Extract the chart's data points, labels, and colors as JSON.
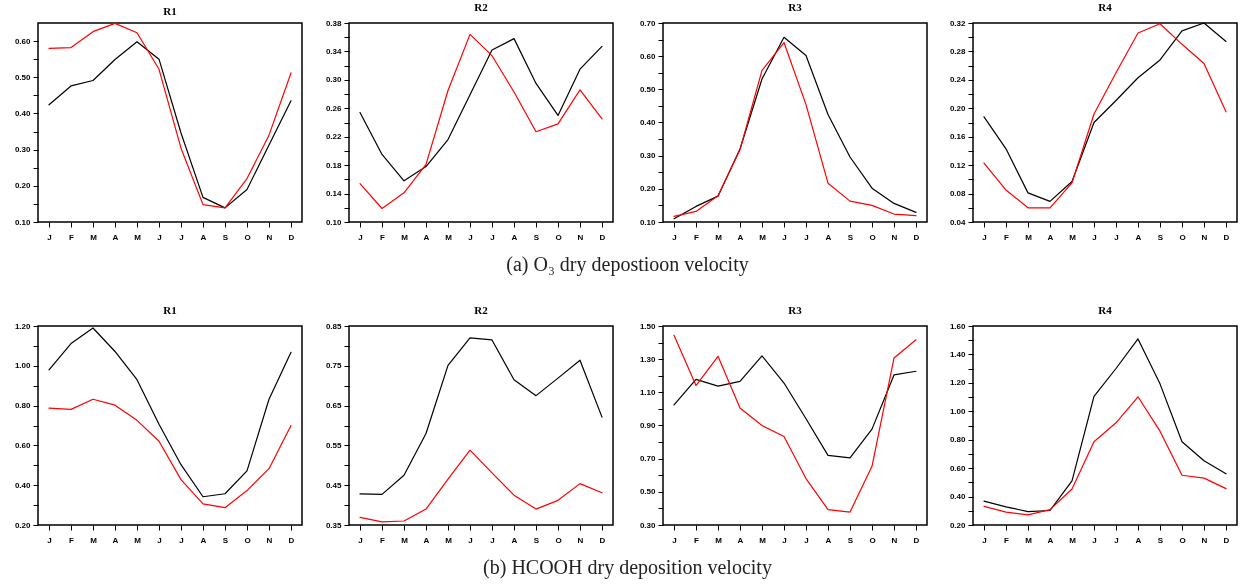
{
  "chart_data": [
    {
      "type": "line",
      "title": "R1",
      "categories": [
        "J",
        "F",
        "M",
        "A",
        "M",
        "J",
        "J",
        "A",
        "S",
        "O",
        "N",
        "D"
      ],
      "ylim": [
        0.1,
        0.65
      ],
      "yticks": [
        {
          "value": 0.1,
          "label": "0.10"
        },
        {
          "value": 0.15,
          "label": null
        },
        {
          "value": 0.2,
          "label": "0.20"
        },
        {
          "value": 0.25,
          "label": null
        },
        {
          "value": 0.3,
          "label": "0.30"
        },
        {
          "value": 0.35,
          "label": null
        },
        {
          "value": 0.4,
          "label": "0.40"
        },
        {
          "value": 0.45,
          "label": null
        },
        {
          "value": 0.5,
          "label": "0.50"
        },
        {
          "value": 0.55,
          "label": null
        },
        {
          "value": 0.6,
          "label": "0.60"
        }
      ],
      "grid": false,
      "annotations": [
        "(a) O₃ dry depostioon velocity"
      ],
      "series": [
        {
          "color": "#000000",
          "values": [
            0.424,
            0.476,
            0.491,
            0.549,
            0.598,
            0.55,
            0.346,
            0.168,
            0.139,
            0.19,
            0.313,
            0.435
          ]
        },
        {
          "color": "#ff0000",
          "values": [
            0.58,
            0.582,
            0.626,
            0.649,
            0.623,
            0.522,
            0.304,
            0.148,
            0.139,
            0.22,
            0.34,
            0.512
          ]
        }
      ]
    },
    {
      "type": "line",
      "title": "R2",
      "categories": [
        "J",
        "F",
        "M",
        "A",
        "M",
        "J",
        "J",
        "A",
        "S",
        "O",
        "N",
        "D"
      ],
      "ylim": [
        0.1,
        0.38
      ],
      "yticks": [
        {
          "value": 0.1,
          "label": "0.10"
        },
        {
          "value": 0.12,
          "label": null
        },
        {
          "value": 0.14,
          "label": "0.14"
        },
        {
          "value": 0.16,
          "label": null
        },
        {
          "value": 0.18,
          "label": "0.18"
        },
        {
          "value": 0.2,
          "label": null
        },
        {
          "value": 0.22,
          "label": "0.22"
        },
        {
          "value": 0.24,
          "label": null
        },
        {
          "value": 0.26,
          "label": "0.26"
        },
        {
          "value": 0.28,
          "label": null
        },
        {
          "value": 0.3,
          "label": "0.30"
        },
        {
          "value": 0.32,
          "label": null
        },
        {
          "value": 0.34,
          "label": "0.34"
        },
        {
          "value": 0.36,
          "label": null
        },
        {
          "value": 0.38,
          "label": "0.38"
        }
      ],
      "grid": false,
      "series": [
        {
          "color": "#000000",
          "values": [
            0.254,
            0.195,
            0.158,
            0.178,
            0.216,
            0.279,
            0.342,
            0.358,
            0.295,
            0.25,
            0.315,
            0.347
          ]
        },
        {
          "color": "#ff0000",
          "values": [
            0.154,
            0.119,
            0.141,
            0.181,
            0.285,
            0.364,
            0.334,
            0.283,
            0.227,
            0.238,
            0.286,
            0.245
          ]
        }
      ]
    },
    {
      "type": "line",
      "title": "R3",
      "categories": [
        "J",
        "F",
        "M",
        "A",
        "M",
        "J",
        "J",
        "A",
        "S",
        "O",
        "N",
        "D"
      ],
      "ylim": [
        0.1,
        0.7
      ],
      "yticks": [
        {
          "value": 0.1,
          "label": "0.10"
        },
        {
          "value": 0.15,
          "label": null
        },
        {
          "value": 0.2,
          "label": "0.20"
        },
        {
          "value": 0.25,
          "label": null
        },
        {
          "value": 0.3,
          "label": "0.30"
        },
        {
          "value": 0.35,
          "label": null
        },
        {
          "value": 0.4,
          "label": "0.40"
        },
        {
          "value": 0.45,
          "label": null
        },
        {
          "value": 0.5,
          "label": "0.50"
        },
        {
          "value": 0.55,
          "label": null
        },
        {
          "value": 0.6,
          "label": "0.60"
        },
        {
          "value": 0.65,
          "label": null
        },
        {
          "value": 0.7,
          "label": "0.70"
        }
      ],
      "grid": false,
      "series": [
        {
          "color": "#000000",
          "values": [
            0.11,
            0.147,
            0.178,
            0.32,
            0.531,
            0.657,
            0.602,
            0.424,
            0.296,
            0.202,
            0.156,
            0.129
          ]
        },
        {
          "color": "#ff0000",
          "values": [
            0.117,
            0.132,
            0.179,
            0.318,
            0.557,
            0.641,
            0.454,
            0.217,
            0.163,
            0.15,
            0.124,
            0.119
          ]
        }
      ]
    },
    {
      "type": "line",
      "title": "R4",
      "categories": [
        "J",
        "F",
        "M",
        "A",
        "M",
        "J",
        "J",
        "A",
        "S",
        "O",
        "N",
        "D"
      ],
      "ylim": [
        0.04,
        0.32
      ],
      "yticks": [
        {
          "value": 0.04,
          "label": "0.04"
        },
        {
          "value": 0.06,
          "label": null
        },
        {
          "value": 0.08,
          "label": "0.08"
        },
        {
          "value": 0.1,
          "label": null
        },
        {
          "value": 0.12,
          "label": "0.12"
        },
        {
          "value": 0.14,
          "label": null
        },
        {
          "value": 0.16,
          "label": "0.16"
        },
        {
          "value": 0.18,
          "label": null
        },
        {
          "value": 0.2,
          "label": "0.20"
        },
        {
          "value": 0.22,
          "label": null
        },
        {
          "value": 0.24,
          "label": "0.24"
        },
        {
          "value": 0.26,
          "label": null
        },
        {
          "value": 0.28,
          "label": "0.28"
        },
        {
          "value": 0.3,
          "label": null
        },
        {
          "value": 0.32,
          "label": "0.32"
        }
      ],
      "grid": false,
      "series": [
        {
          "color": "#000000",
          "values": [
            0.188,
            0.143,
            0.081,
            0.069,
            0.097,
            0.18,
            0.211,
            0.243,
            0.268,
            0.309,
            0.32,
            0.294
          ]
        },
        {
          "color": "#ff0000",
          "values": [
            0.123,
            0.085,
            0.06,
            0.06,
            0.095,
            0.192,
            0.25,
            0.306,
            0.319,
            0.29,
            0.263,
            0.195
          ]
        }
      ]
    },
    {
      "type": "line",
      "title": "R1",
      "categories": [
        "J",
        "F",
        "M",
        "A",
        "M",
        "J",
        "J",
        "A",
        "S",
        "O",
        "N",
        "D"
      ],
      "ylim": [
        0.2,
        1.2
      ],
      "yticks": [
        {
          "value": 0.2,
          "label": "0.20"
        },
        {
          "value": 0.3,
          "label": null
        },
        {
          "value": 0.4,
          "label": "0.40"
        },
        {
          "value": 0.5,
          "label": null
        },
        {
          "value": 0.6,
          "label": "0.60"
        },
        {
          "value": 0.7,
          "label": null
        },
        {
          "value": 0.8,
          "label": "0.80"
        },
        {
          "value": 0.9,
          "label": null
        },
        {
          "value": 1.0,
          "label": "1.00"
        },
        {
          "value": 1.1,
          "label": null
        },
        {
          "value": 1.2,
          "label": "1.20"
        }
      ],
      "grid": false,
      "annotations": [
        "(b) HCOOH dry deposition velocity"
      ],
      "series": [
        {
          "color": "#000000",
          "values": [
            0.98,
            1.112,
            1.19,
            1.072,
            0.93,
            0.706,
            0.503,
            0.342,
            0.357,
            0.472,
            0.832,
            1.068
          ]
        },
        {
          "color": "#ff0000",
          "values": [
            0.787,
            0.781,
            0.832,
            0.802,
            0.726,
            0.621,
            0.428,
            0.306,
            0.287,
            0.373,
            0.483,
            0.7
          ]
        }
      ]
    },
    {
      "type": "line",
      "title": "R2",
      "categories": [
        "J",
        "F",
        "M",
        "A",
        "M",
        "J",
        "J",
        "A",
        "S",
        "O",
        "N",
        "D"
      ],
      "ylim": [
        0.35,
        0.85
      ],
      "yticks": [
        {
          "value": 0.35,
          "label": "0.35"
        },
        {
          "value": 0.4,
          "label": null
        },
        {
          "value": 0.45,
          "label": "0.45"
        },
        {
          "value": 0.5,
          "label": null
        },
        {
          "value": 0.55,
          "label": "0.55"
        },
        {
          "value": 0.6,
          "label": null
        },
        {
          "value": 0.65,
          "label": "0.65"
        },
        {
          "value": 0.7,
          "label": null
        },
        {
          "value": 0.75,
          "label": "0.75"
        },
        {
          "value": 0.8,
          "label": null
        },
        {
          "value": 0.85,
          "label": "0.85"
        }
      ],
      "grid": false,
      "series": [
        {
          "color": "#000000",
          "values": [
            0.428,
            0.427,
            0.475,
            0.58,
            0.751,
            0.82,
            0.815,
            0.715,
            0.675,
            0.719,
            0.764,
            0.621
          ]
        },
        {
          "color": "#ff0000",
          "values": [
            0.369,
            0.358,
            0.36,
            0.39,
            0.465,
            0.538,
            0.481,
            0.425,
            0.39,
            0.412,
            0.454,
            0.431
          ]
        }
      ]
    },
    {
      "type": "line",
      "title": "R3",
      "categories": [
        "J",
        "F",
        "M",
        "A",
        "M",
        "J",
        "J",
        "A",
        "S",
        "O",
        "N",
        "D"
      ],
      "ylim": [
        0.3,
        1.5
      ],
      "yticks": [
        {
          "value": 0.3,
          "label": "0.30"
        },
        {
          "value": 0.4,
          "label": null
        },
        {
          "value": 0.5,
          "label": "0.50"
        },
        {
          "value": 0.6,
          "label": null
        },
        {
          "value": 0.7,
          "label": "0.70"
        },
        {
          "value": 0.8,
          "label": null
        },
        {
          "value": 0.9,
          "label": "0.90"
        },
        {
          "value": 1.0,
          "label": null
        },
        {
          "value": 1.1,
          "label": "1.10"
        },
        {
          "value": 1.2,
          "label": null
        },
        {
          "value": 1.3,
          "label": "1.30"
        },
        {
          "value": 1.4,
          "label": null
        },
        {
          "value": 1.5,
          "label": "1.50"
        }
      ],
      "grid": false,
      "series": [
        {
          "color": "#000000",
          "values": [
            1.024,
            1.178,
            1.137,
            1.166,
            1.32,
            1.156,
            0.941,
            0.72,
            0.705,
            0.878,
            1.205,
            1.227
          ]
        },
        {
          "color": "#ff0000",
          "values": [
            1.444,
            1.141,
            1.317,
            1.005,
            0.9,
            0.834,
            0.58,
            0.393,
            0.378,
            0.654,
            1.307,
            1.417
          ]
        }
      ]
    },
    {
      "type": "line",
      "title": "R4",
      "categories": [
        "J",
        "F",
        "M",
        "A",
        "M",
        "J",
        "J",
        "A",
        "S",
        "O",
        "N",
        "D"
      ],
      "ylim": [
        0.2,
        1.6
      ],
      "yticks": [
        {
          "value": 0.2,
          "label": "0.20"
        },
        {
          "value": 0.3,
          "label": null
        },
        {
          "value": 0.4,
          "label": "0.40"
        },
        {
          "value": 0.5,
          "label": null
        },
        {
          "value": 0.6,
          "label": "0.60"
        },
        {
          "value": 0.7,
          "label": null
        },
        {
          "value": 0.8,
          "label": "0.80"
        },
        {
          "value": 0.9,
          "label": null
        },
        {
          "value": 1.0,
          "label": "1.00"
        },
        {
          "value": 1.1,
          "label": null
        },
        {
          "value": 1.2,
          "label": "1.20"
        },
        {
          "value": 1.3,
          "label": null
        },
        {
          "value": 1.4,
          "label": "1.40"
        },
        {
          "value": 1.5,
          "label": null
        },
        {
          "value": 1.6,
          "label": "1.60"
        }
      ],
      "grid": false,
      "series": [
        {
          "color": "#000000",
          "values": [
            0.368,
            0.328,
            0.294,
            0.302,
            0.51,
            1.105,
            1.301,
            1.509,
            1.193,
            0.786,
            0.652,
            0.561
          ]
        },
        {
          "color": "#ff0000",
          "values": [
            0.331,
            0.291,
            0.271,
            0.308,
            0.453,
            0.786,
            0.919,
            1.102,
            0.86,
            0.55,
            0.53,
            0.456
          ]
        }
      ]
    }
  ]
}
